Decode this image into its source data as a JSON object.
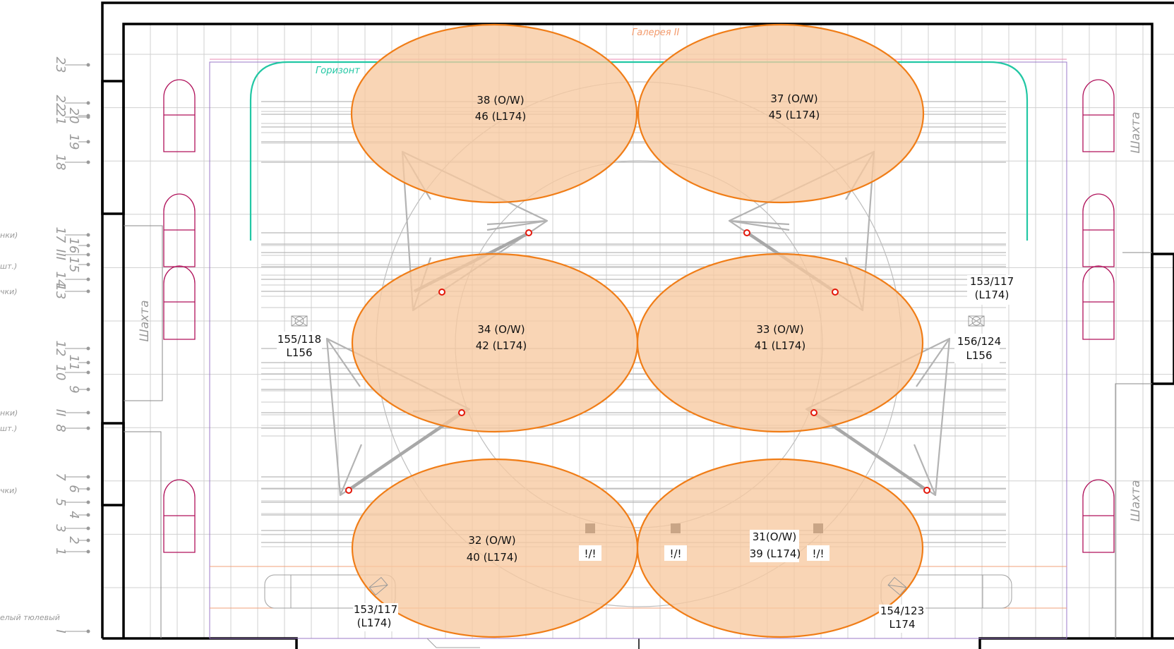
{
  "colors": {
    "spot_fill": "#f7c9a0",
    "spot_stroke": "#f07d17",
    "horizon": "#22c7a4",
    "gallery_text": "#f39b6d",
    "shaft": "#b0125b",
    "grid": "#d0d0d0",
    "wall": "#000000",
    "marker": "#e3170a"
  },
  "labels": {
    "gallery": "Галерея II",
    "horizon": "Горизонт",
    "shaft_left": "Шахта",
    "shaft_right_top": "Шахта",
    "shaft_right_bottom": "Шахта"
  },
  "batten_numbers": [
    "23",
    "22",
    "21",
    "20",
    "19",
    "18",
    "17",
    "III",
    "16",
    "15",
    "14",
    "13",
    "12",
    "11",
    "10",
    "9",
    "II",
    "8",
    "7",
    "6",
    "5",
    "4",
    "3",
    "2",
    "1",
    "I"
  ],
  "side_notes": [
    "нки)",
    "шт.)",
    "чки)",
    "нки)",
    "шт.)",
    "чки)",
    "елый тюлевый"
  ],
  "spots": [
    {
      "id": "38",
      "line1": "38 (O/W)",
      "line2": "46 (L174)"
    },
    {
      "id": "37",
      "line1": "37 (O/W)",
      "line2": "45 (L174)"
    },
    {
      "id": "34",
      "line1": "34 (O/W)",
      "line2": "42 (L174)"
    },
    {
      "id": "33",
      "line1": "33 (O/W)",
      "line2": "41 (L174)"
    },
    {
      "id": "32",
      "line1": "32 (O/W)",
      "line2": "40 (L174)"
    },
    {
      "id": "31",
      "line1": "31(O/W)",
      "line2": "39 (L174)"
    }
  ],
  "fixtures": [
    {
      "line1": "155/118",
      "line2": "L156"
    },
    {
      "line1": "156/124",
      "line2": "L156"
    },
    {
      "line1": "153/117",
      "line2": "(L174)"
    },
    {
      "line1": "153/117",
      "line2": "(L174)"
    },
    {
      "line1": "154/123",
      "line2": "L174"
    }
  ],
  "warnings": [
    "!/!",
    "!/!",
    "!/!"
  ]
}
